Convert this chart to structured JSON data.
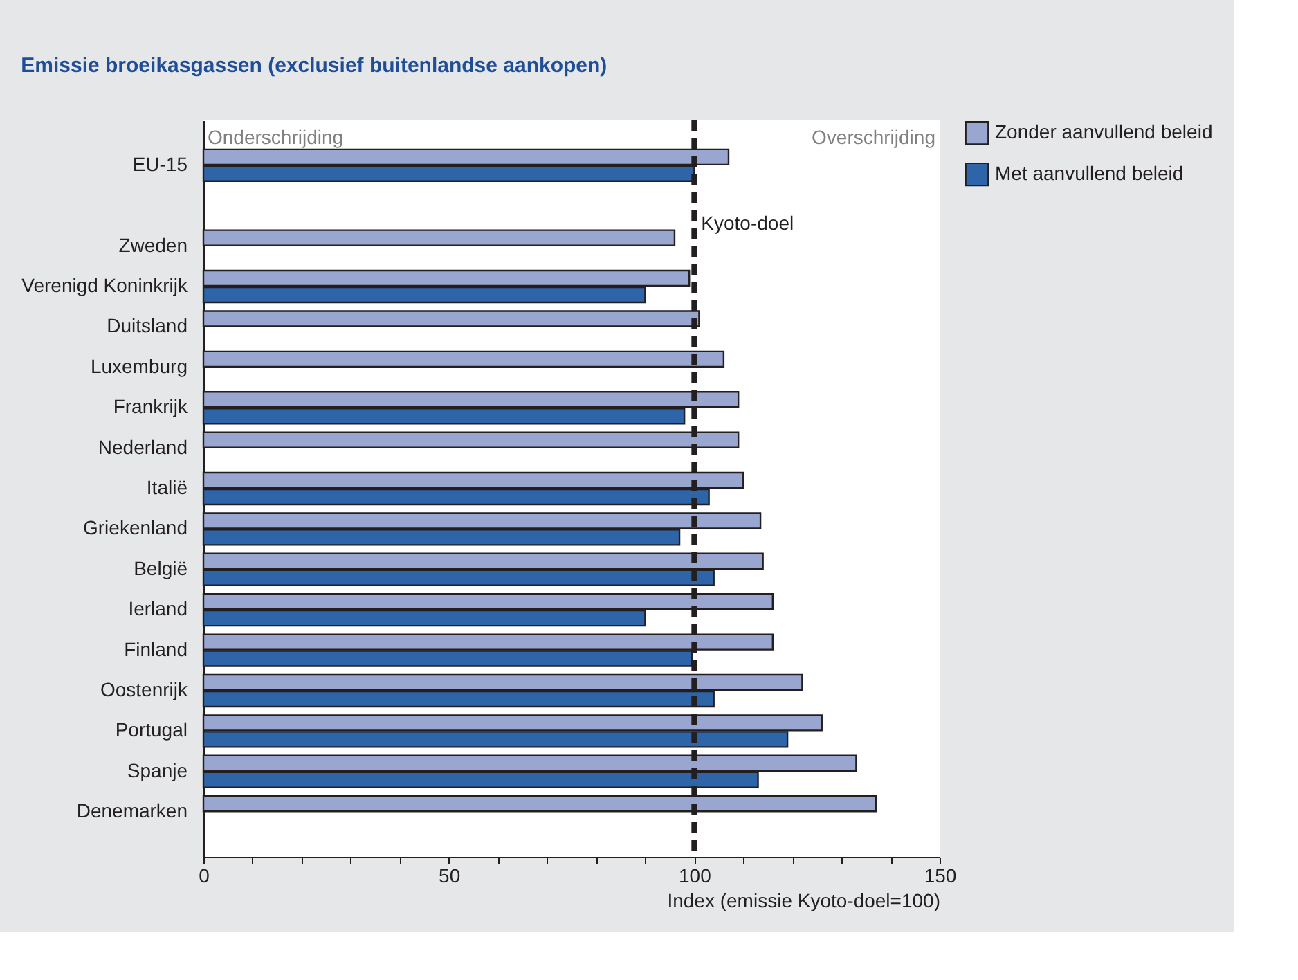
{
  "chart_data": {
    "type": "bar",
    "orientation": "horizontal",
    "title": "Emissie broeikasgassen (exclusief buitenlandse aankopen)",
    "xlabel": "Index (emissie Kyoto-doel=100)",
    "categories": [
      "EU-15",
      null,
      "Zweden",
      "Verenigd Koninkrijk",
      "Duitsland",
      "Luxemburg",
      "Frankrijk",
      "Nederland",
      "Italië",
      "Griekenland",
      "België",
      "Ierland",
      "Finland",
      "Oostenrijk",
      "Portugal",
      "Spanje",
      "Denemarken"
    ],
    "series": [
      {
        "name": "Zonder aanvullend beleid",
        "color": "#98a6d0",
        "values": [
          107,
          null,
          96,
          99,
          101,
          106,
          109,
          109,
          110,
          113.5,
          114,
          116,
          116,
          122,
          126,
          133,
          137
        ]
      },
      {
        "name": "Met aanvullend beleid",
        "color": "#2e64a8",
        "values": [
          100,
          null,
          null,
          90,
          null,
          null,
          98,
          null,
          103,
          97,
          104,
          90,
          99.5,
          104,
          119,
          113,
          null
        ]
      }
    ],
    "xlim": [
      0,
      150
    ],
    "xticks": [
      0,
      {
        "value": 10,
        "label": null
      },
      {
        "value": 20,
        "label": null
      },
      {
        "value": 30,
        "label": null
      },
      {
        "value": 40,
        "label": null
      },
      50,
      {
        "value": 60,
        "label": null
      },
      {
        "value": 70,
        "label": null
      },
      {
        "value": 80,
        "label": null
      },
      {
        "value": 90,
        "label": null
      },
      100,
      {
        "value": 110,
        "label": null
      },
      {
        "value": 120,
        "label": null
      },
      {
        "value": 130,
        "label": null
      },
      {
        "value": 140,
        "label": null
      },
      150
    ],
    "ref_lines": [
      {
        "axis": "x",
        "value": 100,
        "label": "Kyoto-doel",
        "color": "#231f20",
        "line_style": "dashed"
      }
    ],
    "annotations": [
      "Onderschrijding",
      "Overschrijding"
    ],
    "legend": "right",
    "grid": false
  }
}
